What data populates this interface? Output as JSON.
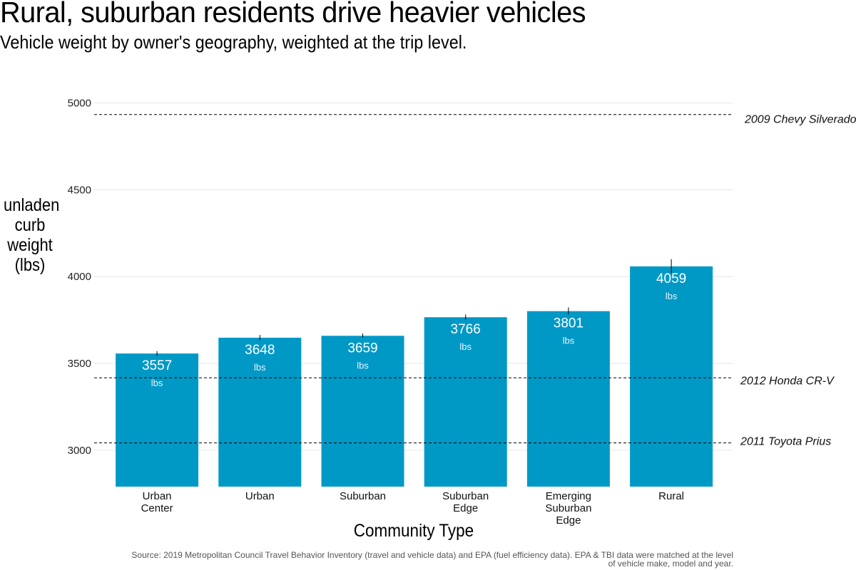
{
  "chart_data": {
    "type": "bar",
    "title": "Rural, suburban residents drive heavier vehicles",
    "subtitle": "Vehicle weight by owner's geography, weighted at the trip level.",
    "xlabel": "Community Type",
    "ylabel": [
      "unladen",
      "curb",
      "weight",
      "(lbs)"
    ],
    "categories": [
      [
        "Urban",
        "Center"
      ],
      [
        "Urban"
      ],
      [
        "Suburban"
      ],
      [
        "Suburban",
        "Edge"
      ],
      [
        "Emerging",
        "Suburban",
        "Edge"
      ],
      [
        "Rural"
      ]
    ],
    "values": [
      3557,
      3648,
      3659,
      3766,
      3801,
      4059
    ],
    "error_bars": [
      [
        3543,
        3571
      ],
      [
        3634,
        3664
      ],
      [
        3648,
        3672
      ],
      [
        3752,
        3782
      ],
      [
        3783,
        3823
      ],
      [
        4018,
        4100
      ]
    ],
    "value_unit": "lbs",
    "ylim": [
      2790,
      5060
    ],
    "yticks": [
      3000,
      3500,
      4000,
      4500,
      5000
    ],
    "grid": "horizontal",
    "bar_color": "#0099c6",
    "reference_lines": [
      {
        "label": "2009 Chevy Silverado",
        "value": 4934
      },
      {
        "label": "2012 Honda CR-V",
        "value": 3417
      },
      {
        "label": "2011 Toyota Prius",
        "value": 3042
      }
    ],
    "caption": [
      "Source: 2019 Metropolitan Council Travel Behavior Inventory (travel and vehicle data) and EPA (fuel efficiency data). EPA & TBI data were matched at the level",
      "of vehicle make, model and year."
    ]
  }
}
